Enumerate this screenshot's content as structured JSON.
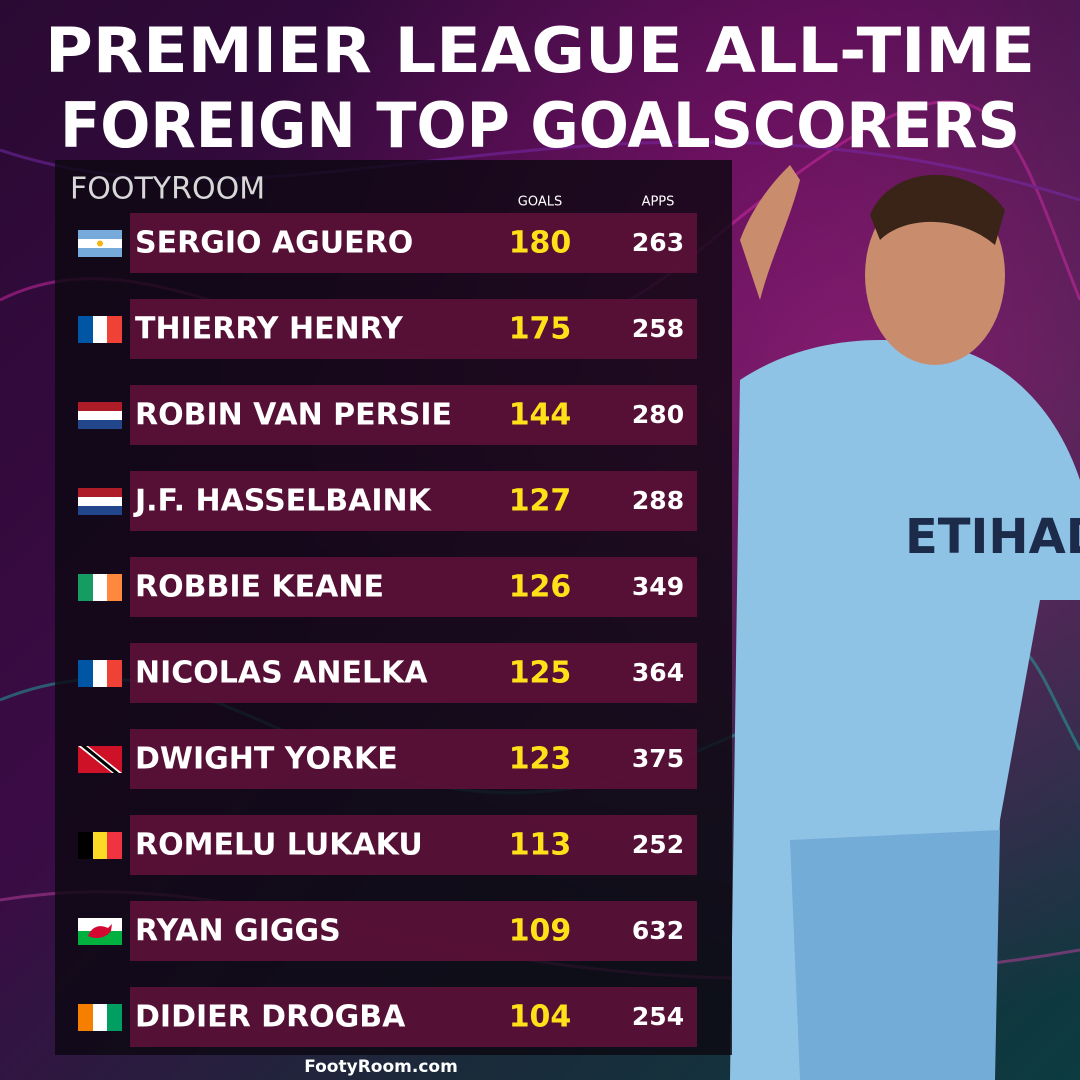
{
  "header": {
    "title_lines": [
      "PREMIER LEAGUE ALL-TIME",
      "FOREIGN  TOP GOALSCORERS"
    ],
    "logo": "FOOTYROOM"
  },
  "table": {
    "columns": [
      "GOALS",
      "APPS"
    ],
    "rows": [
      [
        "SERGIO AGUERO",
        180,
        263
      ],
      [
        "THIERRY HENRY",
        175,
        258
      ],
      [
        "ROBIN VAN PERSIE",
        144,
        280
      ],
      [
        "J.F. HASSELBAINK",
        127,
        288
      ],
      [
        "ROBBIE KEANE",
        126,
        349
      ],
      [
        "NICOLAS ANELKA",
        125,
        364
      ],
      [
        "DWIGHT YORKE",
        123,
        375
      ],
      [
        "ROMELU LUKAKU",
        113,
        252
      ],
      [
        "RYAN GIGGS",
        109,
        632
      ],
      [
        "DIDIER DROGBA",
        104,
        254
      ]
    ]
  },
  "footer": "FootyRoom.com"
}
